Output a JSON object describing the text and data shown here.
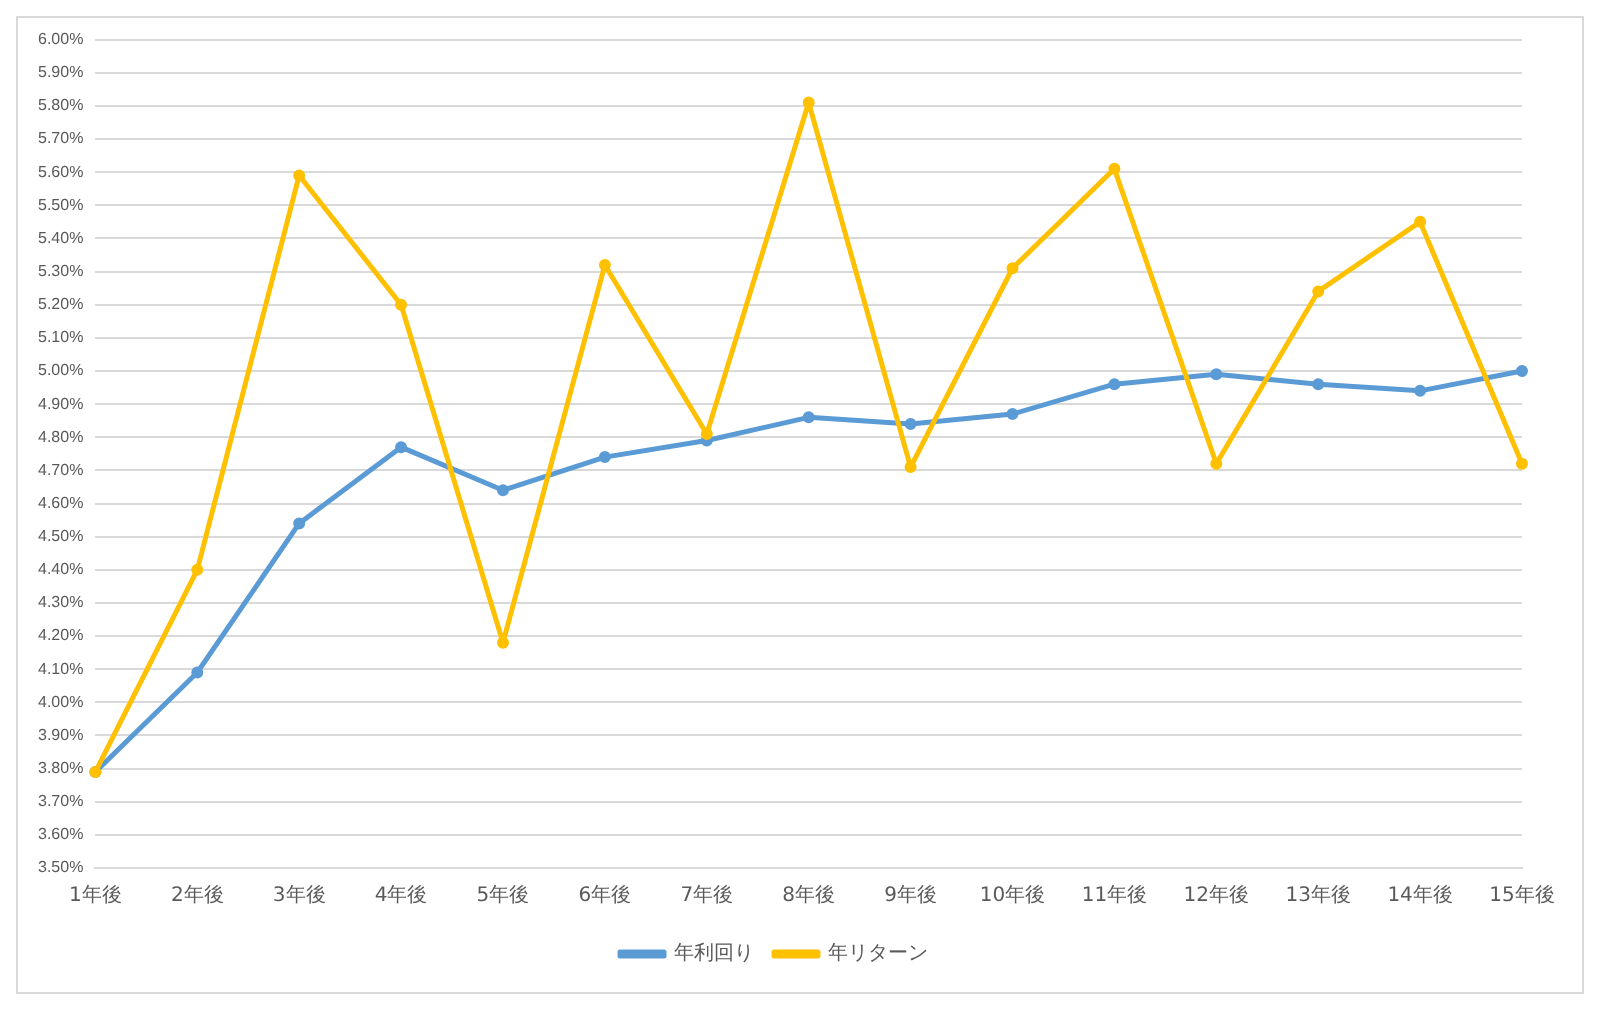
{
  "chart_data": {
    "type": "line",
    "categories": [
      "1年後",
      "2年後",
      "3年後",
      "4年後",
      "5年後",
      "6年後",
      "7年後",
      "8年後",
      "9年後",
      "10年後",
      "11年後",
      "12年後",
      "13年後",
      "14年後",
      "15年後"
    ],
    "series": [
      {
        "name": "年利回り",
        "color": "#5b9bd5",
        "values": [
          3.79,
          4.09,
          4.54,
          4.77,
          4.64,
          4.74,
          4.79,
          4.86,
          4.84,
          4.87,
          4.96,
          4.99,
          4.96,
          4.94,
          5.0
        ]
      },
      {
        "name": "年リターン",
        "color": "#ffc000",
        "values": [
          3.79,
          4.4,
          5.59,
          5.2,
          4.18,
          5.32,
          4.81,
          5.81,
          4.71,
          5.31,
          5.61,
          4.72,
          5.24,
          5.45,
          4.72
        ]
      }
    ],
    "ylim": [
      3.5,
      6.0
    ],
    "yticks": [
      {
        "value": 3.5,
        "label": "3.50%"
      },
      {
        "value": 3.6,
        "label": "3.60%"
      },
      {
        "value": 3.7,
        "label": "3.70%"
      },
      {
        "value": 3.8,
        "label": "3.80%"
      },
      {
        "value": 3.9,
        "label": "3.90%"
      },
      {
        "value": 4.0,
        "label": "4.00%"
      },
      {
        "value": 4.1,
        "label": "4.10%"
      },
      {
        "value": 4.2,
        "label": "4.20%"
      },
      {
        "value": 4.3,
        "label": "4.30%"
      },
      {
        "value": 4.4,
        "label": "4.40%"
      },
      {
        "value": 4.5,
        "label": "4.50%"
      },
      {
        "value": 4.6,
        "label": "4.60%"
      },
      {
        "value": 4.7,
        "label": "4.70%"
      },
      {
        "value": 4.8,
        "label": "4.80%"
      },
      {
        "value": 4.9,
        "label": "4.90%"
      },
      {
        "value": 5.0,
        "label": "5.00%"
      },
      {
        "value": 5.1,
        "label": "5.10%"
      },
      {
        "value": 5.2,
        "label": "5.20%"
      },
      {
        "value": 5.3,
        "label": "5.30%"
      },
      {
        "value": 5.4,
        "label": "5.40%"
      },
      {
        "value": 5.5,
        "label": "5.50%"
      },
      {
        "value": 5.6,
        "label": "5.60%"
      },
      {
        "value": 5.7,
        "label": "5.70%"
      },
      {
        "value": 5.8,
        "label": "5.80%"
      },
      {
        "value": 5.9,
        "label": "5.90%"
      },
      {
        "value": 6.0,
        "label": "6.00%"
      }
    ],
    "grid": "y",
    "legend": "bottom",
    "marker": "circle",
    "line_style": "solid"
  }
}
